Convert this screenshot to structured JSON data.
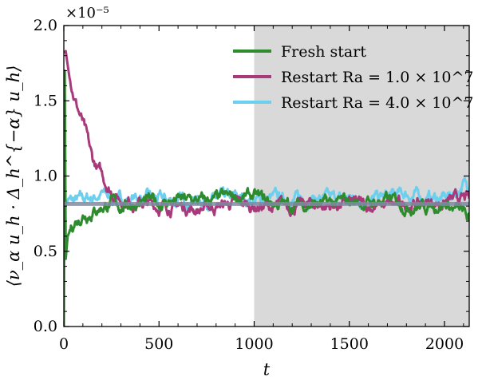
{
  "chart_data": {
    "type": "line",
    "xlabel": "t",
    "ylabel": "⟨ν_α u_h · Δ_h^{−α} u_h⟩",
    "y_multiplier_label": "×10⁻⁵",
    "xlim": [
      0,
      2130
    ],
    "ylim": [
      0.0,
      2.0
    ],
    "xticks": [
      0,
      500,
      1000,
      1500,
      2000
    ],
    "yticks": [
      0.0,
      0.5,
      1.0,
      1.5,
      2.0
    ],
    "xtick_labels": [
      "0",
      "500",
      "1000",
      "1500",
      "2000"
    ],
    "ytick_labels": [
      "0.0",
      "0.5",
      "1.0",
      "1.5",
      "2.0"
    ],
    "shaded_region": {
      "x_start": 1000,
      "x_end": 2130,
      "color": "#d9d9d9"
    },
    "reference_line": {
      "y": 0.815,
      "color": "#7f8aa3"
    },
    "legend_position": "top-right",
    "series": [
      {
        "name": "Fresh start",
        "color": "#2e8b2e",
        "points": [
          [
            0,
            0.0
          ],
          [
            5,
            1.7
          ],
          [
            10,
            0.45
          ],
          [
            20,
            0.6
          ],
          [
            40,
            0.66
          ],
          [
            60,
            0.7
          ],
          [
            80,
            0.72
          ],
          [
            100,
            0.75
          ],
          [
            150,
            0.77
          ],
          [
            200,
            0.8
          ],
          [
            250,
            0.82
          ],
          [
            300,
            0.8
          ],
          [
            400,
            0.83
          ],
          [
            500,
            0.82
          ],
          [
            600,
            0.84
          ],
          [
            700,
            0.83
          ],
          [
            800,
            0.84
          ],
          [
            900,
            0.86
          ],
          [
            1000,
            0.86
          ],
          [
            1100,
            0.82
          ],
          [
            1200,
            0.8
          ],
          [
            1300,
            0.82
          ],
          [
            1400,
            0.81
          ],
          [
            1500,
            0.83
          ],
          [
            1600,
            0.82
          ],
          [
            1700,
            0.84
          ],
          [
            1800,
            0.81
          ],
          [
            1900,
            0.8
          ],
          [
            2000,
            0.82
          ],
          [
            2100,
            0.75
          ],
          [
            2130,
            0.7
          ]
        ]
      },
      {
        "name": "Restart Ra = 1.0 × 10^7",
        "color": "#a8397a",
        "points": [
          [
            0,
            1.82
          ],
          [
            10,
            1.83
          ],
          [
            30,
            1.65
          ],
          [
            60,
            1.5
          ],
          [
            100,
            1.35
          ],
          [
            150,
            1.1
          ],
          [
            200,
            1.0
          ],
          [
            250,
            0.9
          ],
          [
            300,
            0.85
          ],
          [
            400,
            0.82
          ],
          [
            500,
            0.8
          ],
          [
            600,
            0.8
          ],
          [
            700,
            0.78
          ],
          [
            800,
            0.8
          ],
          [
            900,
            0.82
          ],
          [
            1000,
            0.8
          ],
          [
            1100,
            0.79
          ],
          [
            1200,
            0.8
          ],
          [
            1300,
            0.81
          ],
          [
            1400,
            0.8
          ],
          [
            1500,
            0.82
          ],
          [
            1600,
            0.8
          ],
          [
            1700,
            0.8
          ],
          [
            1800,
            0.81
          ],
          [
            1900,
            0.82
          ],
          [
            2000,
            0.83
          ],
          [
            2100,
            0.84
          ],
          [
            2130,
            0.85
          ]
        ]
      },
      {
        "name": "Restart Ra = 4.0 × 10^7",
        "color": "#6ccfee",
        "points": [
          [
            0,
            0.84
          ],
          [
            50,
            0.83
          ],
          [
            100,
            0.84
          ],
          [
            150,
            0.86
          ],
          [
            200,
            0.88
          ],
          [
            250,
            0.85
          ],
          [
            300,
            0.84
          ],
          [
            400,
            0.86
          ],
          [
            500,
            0.84
          ],
          [
            600,
            0.83
          ],
          [
            700,
            0.85
          ],
          [
            800,
            0.84
          ],
          [
            900,
            0.85
          ],
          [
            1000,
            0.84
          ],
          [
            1100,
            0.85
          ],
          [
            1200,
            0.84
          ],
          [
            1300,
            0.86
          ],
          [
            1400,
            0.84
          ],
          [
            1500,
            0.85
          ],
          [
            1600,
            0.84
          ],
          [
            1700,
            0.86
          ],
          [
            1800,
            0.88
          ],
          [
            1900,
            0.86
          ],
          [
            2000,
            0.85
          ],
          [
            2050,
            0.88
          ],
          [
            2100,
            0.95
          ],
          [
            2130,
            0.92
          ]
        ]
      }
    ]
  }
}
